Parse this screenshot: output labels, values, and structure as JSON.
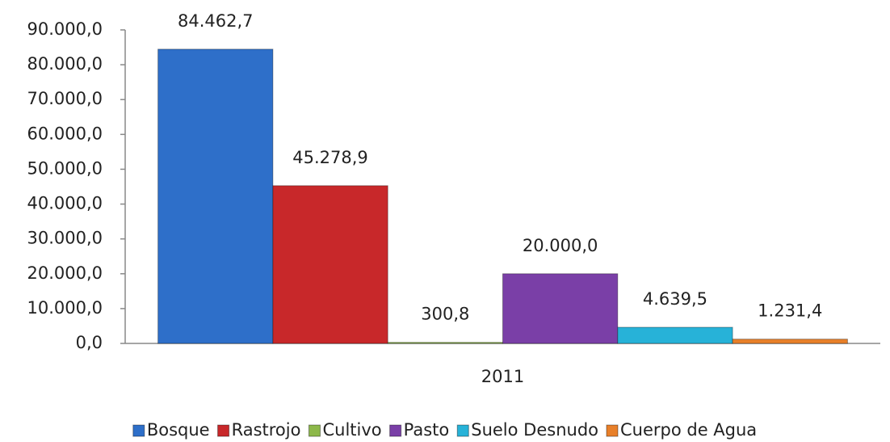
{
  "chart_data": {
    "type": "bar",
    "categories": [
      "2011"
    ],
    "series": [
      {
        "name": "Bosque",
        "color": "#2e6fc9",
        "values": [
          84462.7
        ],
        "value_labels": [
          "84.462,7"
        ]
      },
      {
        "name": "Rastrojo",
        "color": "#c8282a",
        "values": [
          45278.9
        ],
        "value_labels": [
          "45.278,9"
        ]
      },
      {
        "name": "Cultivo",
        "color": "#8db84a",
        "values": [
          300.8
        ],
        "value_labels": [
          "300,8"
        ]
      },
      {
        "name": "Pasto",
        "color": "#7a3fa7",
        "values": [
          20000.0
        ],
        "value_labels": [
          "20.000,0"
        ]
      },
      {
        "name": "Suelo Desnudo",
        "color": "#27b2d8",
        "values": [
          4639.5
        ],
        "value_labels": [
          "4.639,5"
        ]
      },
      {
        "name": "Cuerpo de Agua",
        "color": "#e8802a",
        "values": [
          1231.4
        ],
        "value_labels": [
          "1.231,4"
        ]
      }
    ],
    "ylim": [
      0,
      90000
    ],
    "yticks": [
      {
        "value": 0,
        "label": "0,0"
      },
      {
        "value": 10000,
        "label": "10.000,0"
      },
      {
        "value": 20000,
        "label": "20.000,0"
      },
      {
        "value": 30000,
        "label": "30.000,0"
      },
      {
        "value": 40000,
        "label": "40.000,0"
      },
      {
        "value": 50000,
        "label": "50.000,0"
      },
      {
        "value": 60000,
        "label": "60.000,0"
      },
      {
        "value": 70000,
        "label": "70.000,0"
      },
      {
        "value": 80000,
        "label": "80.000,0"
      },
      {
        "value": 90000,
        "label": "90.000,0"
      }
    ],
    "grid": false,
    "legend": "bottom"
  }
}
